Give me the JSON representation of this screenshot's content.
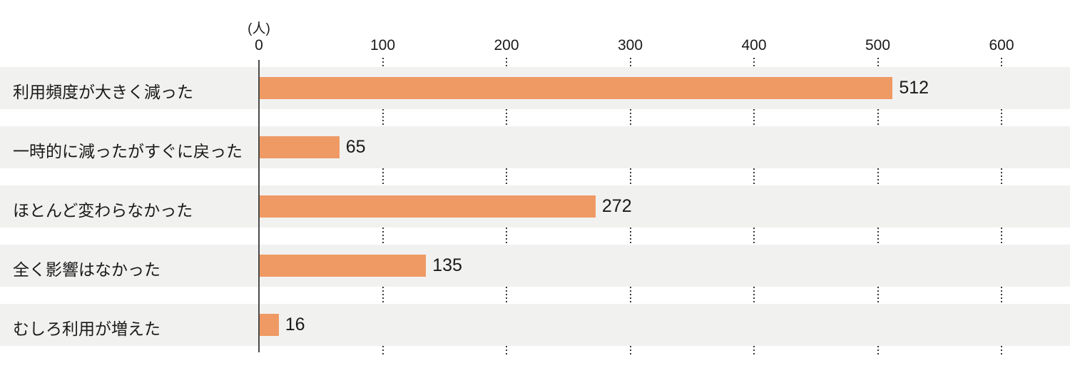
{
  "chart_data": {
    "type": "bar",
    "orientation": "horizontal",
    "title": "",
    "unit_label": "(人)",
    "categories": [
      "利用頻度が大きく減った",
      "一時的に減ったがすぐに戻った",
      "ほとんど変わらなかった",
      "全く影響はなかった",
      "むしろ利用が増えた"
    ],
    "values": [
      512,
      65,
      272,
      135,
      16
    ],
    "xlabel": "",
    "ylabel": "",
    "xlim": [
      0,
      600
    ],
    "xticks": [
      0,
      100,
      200,
      300,
      400,
      500,
      600
    ],
    "grid": "dotted-vertical-in-gaps",
    "legend": "none",
    "bar_color": "#EF9A64",
    "band_color": "#F1F1F0",
    "axis_color": "#4A4A4A",
    "grid_dot_color": "#3A3A3A",
    "text_color": "#1A1A1A"
  }
}
